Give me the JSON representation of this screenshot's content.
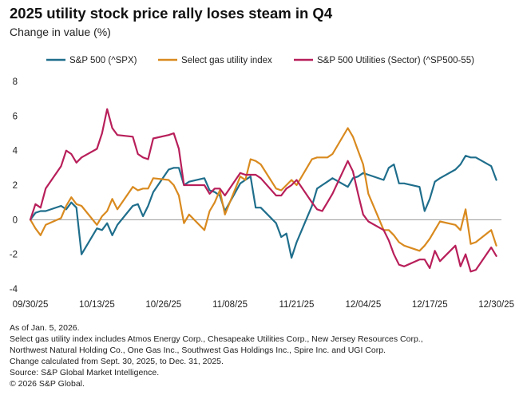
{
  "header": {
    "title": "2025 utility stock price rally loses steam in Q4",
    "subtitle": "Change in value (%)"
  },
  "notes": [
    "As of Jan. 5, 2026.",
    "Select gas utility index includes Atmos Energy Corp., Chesapeake Utilities Corp., New Jersey Resources Corp.,",
    "Northwest Natural Holding Co., One Gas Inc., Southwest Gas Holdings Inc., Spire Inc. and UGI Corp.",
    "Change calculated from Sept. 30, 2025, to Dec. 31, 2025.",
    "Source: S&P Global Market Intelligence.",
    "© 2026 S&P Global."
  ],
  "chart_data": {
    "type": "line",
    "title": "2025 utility stock price rally loses steam in Q4",
    "ylabel": "Change in value (%)",
    "xlabel": "",
    "ylim": [
      -4,
      8
    ],
    "yticks": [
      -4,
      -2,
      0,
      2,
      4,
      6,
      8
    ],
    "xlim": [
      0,
      92
    ],
    "xticks": [
      {
        "x": 0,
        "label": "09/30/25"
      },
      {
        "x": 13,
        "label": "10/13/25"
      },
      {
        "x": 26,
        "label": "10/26/25"
      },
      {
        "x": 39,
        "label": "11/08/25"
      },
      {
        "x": 52,
        "label": "11/21/25"
      },
      {
        "x": 65,
        "label": "12/04/25"
      },
      {
        "x": 78,
        "label": "12/17/25"
      },
      {
        "x": 91,
        "label": "12/30/25"
      }
    ],
    "grid": false,
    "legend_position": "top",
    "series": [
      {
        "name": "S&P 500 (^SPX)",
        "color": "#1f6e8c",
        "x": [
          0,
          1,
          2,
          3,
          6,
          7,
          8,
          9,
          10,
          13,
          14,
          15,
          16,
          17,
          20,
          21,
          22,
          23,
          24,
          27,
          28,
          29,
          30,
          31,
          34,
          35,
          36,
          37,
          38,
          41,
          42,
          43,
          44,
          45,
          48,
          49,
          50,
          51,
          52,
          55,
          56,
          57,
          58,
          59,
          62,
          63,
          64,
          65,
          66,
          69,
          70,
          71,
          72,
          73,
          76,
          77,
          78,
          79,
          80,
          83,
          84,
          85,
          86,
          87,
          90,
          91
        ],
        "values": [
          0,
          0.4,
          0.5,
          0.5,
          0.8,
          0.6,
          1.0,
          0.7,
          -2.0,
          -0.5,
          -0.6,
          -0.2,
          -0.9,
          -0.3,
          0.8,
          0.9,
          0.2,
          0.8,
          1.6,
          2.9,
          3.0,
          3.0,
          2.0,
          2.2,
          2.4,
          1.7,
          1.6,
          1.4,
          0.5,
          2.1,
          2.3,
          2.5,
          0.7,
          0.7,
          -0.2,
          -1.0,
          -0.8,
          -2.2,
          -1.3,
          0.8,
          1.8,
          2.0,
          2.2,
          2.4,
          1.9,
          2.4,
          2.5,
          2.7,
          2.6,
          2.3,
          3.0,
          3.2,
          2.1,
          2.1,
          1.9,
          0.5,
          1.2,
          2.2,
          2.4,
          2.9,
          3.2,
          3.7,
          3.6,
          3.6,
          3.1,
          2.3
        ]
      },
      {
        "name": "Select gas utility index",
        "color": "#d98a1f",
        "x": [
          0,
          1,
          2,
          3,
          6,
          7,
          8,
          9,
          10,
          13,
          14,
          15,
          16,
          17,
          20,
          21,
          22,
          23,
          24,
          27,
          28,
          29,
          30,
          31,
          34,
          35,
          36,
          37,
          38,
          41,
          42,
          43,
          44,
          45,
          48,
          49,
          50,
          51,
          52,
          55,
          56,
          57,
          58,
          59,
          62,
          63,
          64,
          65,
          66,
          69,
          70,
          71,
          72,
          73,
          76,
          77,
          78,
          79,
          80,
          83,
          84,
          85,
          86,
          87,
          90,
          91
        ],
        "values": [
          0,
          -0.5,
          -0.9,
          -0.3,
          0.1,
          0.8,
          1.3,
          0.9,
          0.8,
          -0.3,
          0.2,
          0.5,
          1.2,
          0.6,
          1.9,
          1.7,
          1.8,
          1.8,
          2.4,
          2.3,
          2.0,
          1.4,
          -0.2,
          0.3,
          -0.6,
          0.5,
          1.0,
          1.7,
          0.3,
          2.5,
          2.3,
          3.5,
          3.4,
          3.2,
          1.8,
          1.7,
          2.0,
          2.3,
          2.0,
          3.5,
          3.6,
          3.6,
          3.6,
          3.8,
          5.3,
          4.8,
          4.0,
          3.2,
          1.5,
          -0.6,
          -0.6,
          -0.9,
          -1.3,
          -1.5,
          -1.8,
          -1.5,
          -1.1,
          -0.6,
          -0.1,
          -0.3,
          -0.6,
          0.6,
          -1.4,
          -1.3,
          -0.6,
          -1.5
        ]
      },
      {
        "name": "S&P 500 Utilities (Sector) (^SP500-55)",
        "color": "#b81f5a",
        "x": [
          0,
          1,
          2,
          3,
          6,
          7,
          8,
          9,
          10,
          13,
          14,
          15,
          16,
          17,
          20,
          21,
          22,
          23,
          24,
          27,
          28,
          29,
          30,
          31,
          34,
          35,
          36,
          37,
          38,
          41,
          42,
          43,
          44,
          45,
          48,
          49,
          50,
          51,
          52,
          55,
          56,
          57,
          58,
          59,
          62,
          63,
          64,
          65,
          66,
          69,
          70,
          71,
          72,
          73,
          76,
          77,
          78,
          79,
          80,
          83,
          84,
          85,
          86,
          87,
          90,
          91
        ],
        "values": [
          0,
          0.9,
          0.7,
          1.8,
          3.1,
          4.0,
          3.8,
          3.3,
          3.6,
          4.1,
          5.0,
          6.4,
          5.3,
          4.9,
          4.8,
          3.8,
          3.6,
          3.5,
          4.7,
          4.9,
          5.0,
          4.1,
          2.0,
          2.0,
          2.0,
          1.5,
          1.8,
          1.8,
          1.4,
          2.7,
          2.6,
          2.6,
          2.6,
          2.4,
          1.4,
          1.4,
          1.8,
          2.0,
          2.3,
          1.0,
          0.6,
          0.5,
          1.0,
          1.5,
          3.4,
          2.8,
          1.5,
          0.3,
          -0.1,
          -0.6,
          -1.2,
          -2.0,
          -2.6,
          -2.7,
          -2.3,
          -2.3,
          -2.8,
          -1.8,
          -2.4,
          -1.5,
          -2.7,
          -2.0,
          -3.0,
          -2.9,
          -1.6,
          -2.1
        ]
      }
    ]
  }
}
